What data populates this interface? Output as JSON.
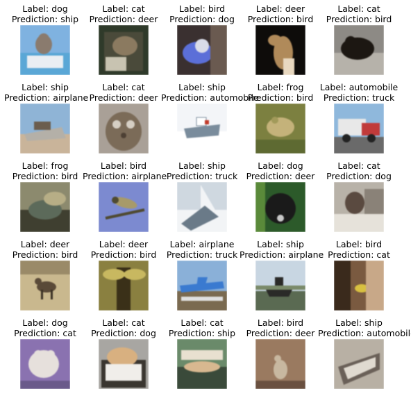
{
  "label_prefix": "Label: ",
  "prediction_prefix": "Prediction: ",
  "cells": [
    {
      "label": "dog",
      "prediction": "ship",
      "thumb": "dog-on-boat",
      "palette": {
        "bg": "#7fb2e0",
        "a": "#e9eef3",
        "b": "#8a7b6e",
        "c": "#5aa7d6"
      }
    },
    {
      "label": "cat",
      "prediction": "deer",
      "thumb": "cat-on-chair",
      "palette": {
        "bg": "#2f3a2a",
        "a": "#8b7a60",
        "b": "#c8c3b1",
        "c": "#4a4a3a"
      }
    },
    {
      "label": "bird",
      "prediction": "dog",
      "thumb": "blue-bird",
      "palette": {
        "bg": "#3a3030",
        "a": "#5b6fd8",
        "b": "#d9dce8",
        "c": "#6a5a50"
      }
    },
    {
      "label": "deer",
      "prediction": "bird",
      "thumb": "deer-head",
      "palette": {
        "bg": "#0e0c0a",
        "a": "#b08a5a",
        "b": "#e8d8c0",
        "c": "#3a2a1c"
      }
    },
    {
      "label": "cat",
      "prediction": "bird",
      "thumb": "cat-on-gravel",
      "palette": {
        "bg": "#8d8a85",
        "a": "#1c1712",
        "b": "#b6b2aa",
        "c": "#6a655c"
      }
    },
    {
      "label": "ship",
      "prediction": "airplane",
      "thumb": "ship-dock",
      "palette": {
        "bg": "#8fb4d6",
        "a": "#b4b0a8",
        "b": "#6b5d4e",
        "c": "#c9b49a"
      }
    },
    {
      "label": "cat",
      "prediction": "deer",
      "thumb": "owl-cat",
      "palette": {
        "bg": "#a9a097",
        "a": "#7b6b58",
        "b": "#d6cfc4",
        "c": "#4d4034"
      }
    },
    {
      "label": "ship",
      "prediction": "automobile",
      "thumb": "white-boat",
      "palette": {
        "bg": "#f3f5f8",
        "a": "#ffffff",
        "b": "#7a8c9c",
        "c": "#c23a2a"
      }
    },
    {
      "label": "frog",
      "prediction": "bird",
      "thumb": "frog-grass",
      "palette": {
        "bg": "#7c8040",
        "a": "#a29a5a",
        "b": "#5e6a32",
        "c": "#c4b27a"
      }
    },
    {
      "label": "automobile",
      "prediction": "truck",
      "thumb": "red-truck",
      "palette": {
        "bg": "#8fb8dc",
        "a": "#e8e8e8",
        "b": "#c03a3a",
        "c": "#6a6a6a"
      }
    },
    {
      "label": "frog",
      "prediction": "bird",
      "thumb": "frog-rocks",
      "palette": {
        "bg": "#8c8a6e",
        "a": "#5c6a5a",
        "b": "#b7ae86",
        "c": "#3f3f30"
      }
    },
    {
      "label": "bird",
      "prediction": "airplane",
      "thumb": "bird-branch",
      "palette": {
        "bg": "#7c8ad0",
        "a": "#a79a6a",
        "b": "#4f4a30",
        "c": "#c9c0a0"
      }
    },
    {
      "label": "ship",
      "prediction": "truck",
      "thumb": "sailboat-snow",
      "palette": {
        "bg": "#cfd8e0",
        "a": "#9aa6b0",
        "b": "#f2f4f6",
        "c": "#6a7a88"
      }
    },
    {
      "label": "dog",
      "prediction": "deer",
      "thumb": "black-dog",
      "palette": {
        "bg": "#2c5a2a",
        "a": "#1a1a1a",
        "b": "#5a8a3a",
        "c": "#c8c8c8"
      }
    },
    {
      "label": "cat",
      "prediction": "dog",
      "thumb": "siamese-cat",
      "palette": {
        "bg": "#b8b2a8",
        "a": "#5a4a40",
        "b": "#e6e2da",
        "c": "#8a8278"
      }
    },
    {
      "label": "deer",
      "prediction": "bird",
      "thumb": "deer-field",
      "palette": {
        "bg": "#9a8a68",
        "a": "#5a4a38",
        "b": "#c9b88e",
        "c": "#3a3024"
      }
    },
    {
      "label": "deer",
      "prediction": "bird",
      "thumb": "moose-forest",
      "palette": {
        "bg": "#8a8040",
        "a": "#3a3018",
        "b": "#c8b860",
        "c": "#5a5028"
      }
    },
    {
      "label": "airplane",
      "prediction": "truck",
      "thumb": "blue-plane",
      "palette": {
        "bg": "#8ab0d8",
        "a": "#3a7ad0",
        "b": "#e0e0e0",
        "c": "#7a6a50"
      }
    },
    {
      "label": "ship",
      "prediction": "airplane",
      "thumb": "boat-shore",
      "palette": {
        "bg": "#c8d6e2",
        "a": "#2a2a28",
        "b": "#7a8a6a",
        "c": "#5a6a52"
      }
    },
    {
      "label": "bird",
      "prediction": "cat",
      "thumb": "yellow-bird",
      "palette": {
        "bg": "#7a5a40",
        "a": "#d8c040",
        "b": "#c8a888",
        "c": "#3a2a1c"
      }
    },
    {
      "label": "dog",
      "prediction": "cat",
      "thumb": "dog-purple",
      "palette": {
        "bg": "#8a72b0",
        "a": "#e6e0dc",
        "b": "#b8a0d8",
        "c": "#6a5a8a"
      }
    },
    {
      "label": "cat",
      "prediction": "dog",
      "thumb": "cat-box",
      "palette": {
        "bg": "#a8a6a2",
        "a": "#d8b080",
        "b": "#f0eeea",
        "c": "#3a3630"
      }
    },
    {
      "label": "cat",
      "prediction": "ship",
      "thumb": "cat-lying",
      "palette": {
        "bg": "#6a8a6a",
        "a": "#d8b890",
        "b": "#e8e0d0",
        "c": "#3a4a3a"
      }
    },
    {
      "label": "bird",
      "prediction": "deer",
      "thumb": "bird-ground",
      "palette": {
        "bg": "#9a7a60",
        "a": "#c8b8a0",
        "b": "#6a5040",
        "c": "#3a2a20"
      }
    },
    {
      "label": "ship",
      "prediction": "automobile",
      "thumb": "rowboat",
      "palette": {
        "bg": "#b8b0a4",
        "a": "#6a6058",
        "b": "#e0dad0",
        "c": "#4a4038"
      }
    }
  ]
}
